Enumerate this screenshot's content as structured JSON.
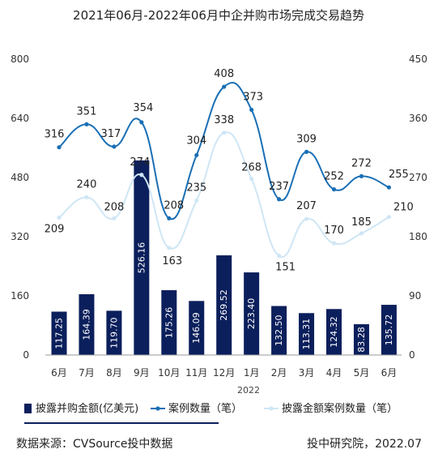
{
  "chart_data": {
    "type": "bar",
    "title": "2021年06月-2022年06月中企并购市场完成交易趋势",
    "categories": [
      "6月",
      "7月",
      "8月",
      "9月",
      "10月",
      "11月",
      "12月",
      "1月",
      "2月",
      "3月",
      "4月",
      "5月",
      "6月"
    ],
    "year_label": "2022",
    "y_left": {
      "ticks": [
        "0",
        "160",
        "320",
        "480",
        "640",
        "800"
      ],
      "range": [
        0,
        800
      ]
    },
    "y_right": {
      "ticks": [
        "0",
        "90",
        "180",
        "270",
        "360",
        "450"
      ],
      "range": [
        0,
        450
      ]
    },
    "series": [
      {
        "name": "披露并购金额(亿美元)",
        "type": "bar",
        "axis": "left",
        "color": "#0b1f5c",
        "values": [
          117.25,
          164.39,
          119.7,
          526.16,
          175.26,
          146.09,
          269.52,
          223.4,
          132.5,
          113.31,
          124.32,
          83.28,
          135.72
        ],
        "labels": [
          "117.25",
          "164.39",
          "119.70",
          "526.16",
          "175.26",
          "146.09",
          "269.52",
          "223.40",
          "132.50",
          "113.31",
          "124.32",
          "83.28",
          "135.72"
        ]
      },
      {
        "name": "案例数量（笔）",
        "type": "line",
        "axis": "right",
        "color": "#1a6fb5",
        "values": [
          316,
          351,
          317,
          354,
          208,
          304,
          408,
          373,
          237,
          309,
          252,
          272,
          255
        ],
        "labels": [
          "316",
          "351",
          "317",
          "354",
          "208",
          "304",
          "408",
          "373",
          "237",
          "309",
          "252",
          "272",
          "255"
        ]
      },
      {
        "name": "披露金额案例数量（笔）",
        "type": "line",
        "axis": "right",
        "color": "#cfe6f5",
        "values": [
          209,
          240,
          208,
          274,
          163,
          235,
          338,
          268,
          151,
          207,
          170,
          185,
          210
        ],
        "labels": [
          "209",
          "240",
          "208",
          "274",
          "163",
          "235",
          "338",
          "268",
          "151",
          "207",
          "170",
          "185",
          "210"
        ]
      }
    ],
    "legend_placement": "bottom",
    "grid": false
  },
  "footer": {
    "source": "数据来源：CVSource投中数据",
    "brand": "投中研究院，2022.07"
  }
}
